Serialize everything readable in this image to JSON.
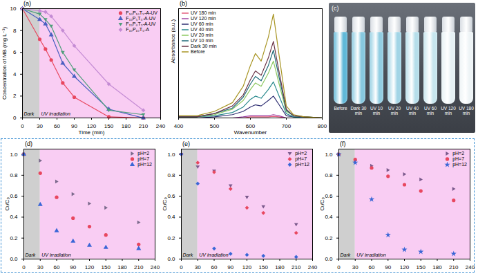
{
  "chart_data": [
    {
      "type": "line",
      "title": "(a)",
      "xlabel": "Time (min)",
      "ylabel": "Concentration of MB (mg L⁻¹)",
      "xlim": [
        0,
        240
      ],
      "xticks": [
        0,
        30,
        60,
        90,
        120,
        150,
        180,
        210,
        240
      ],
      "ylim": [
        0,
        10
      ],
      "yticks": [
        0,
        2,
        4,
        6,
        8,
        10
      ],
      "legend": "upper right",
      "annotations": [
        {
          "text": "Dark",
          "x": [
            0,
            30
          ],
          "color": "#cfcfcf"
        },
        {
          "text": "UV irradiation",
          "x": [
            30,
            240
          ],
          "color": "#f9cdf3"
        }
      ],
      "x": [
        0,
        30,
        40,
        50,
        70,
        90,
        150,
        210
      ],
      "series": [
        {
          "name": "F₁₀P₁₀T₅-A-UV",
          "color": "#e8475f",
          "marker": "circle",
          "values": [
            10,
            7.2,
            6.3,
            5.3,
            3.2,
            1.9,
            0.1,
            0.0
          ]
        },
        {
          "name": "F₁₅P₅T₅-A-UV",
          "color": "#4a5fc1",
          "marker": "triangle",
          "values": [
            10,
            9.0,
            8.6,
            7.6,
            5.0,
            3.8,
            0.8,
            0.0
          ]
        },
        {
          "name": "F₁₅P₀T₅-A-UV",
          "color": "#4e9e7a",
          "marker": "triangle-down",
          "values": [
            10,
            9.5,
            9.0,
            8.4,
            6.0,
            4.4,
            0.7,
            0.3
          ]
        },
        {
          "name": "F₁₀P₁₀T₅-A",
          "color": "#c48bd4",
          "marker": "diamond",
          "values": [
            10,
            9.8,
            9.7,
            9.3,
            8.0,
            6.6,
            3.1,
            0.7
          ]
        }
      ]
    },
    {
      "type": "line",
      "title": "(b)",
      "xlabel": "Wavenumber",
      "ylabel": "Absorbance (a.u.)",
      "xlim": [
        400,
        800
      ],
      "xticks": [
        400,
        500,
        600,
        700,
        800
      ],
      "ylim": [
        0,
        1
      ],
      "yticks": [],
      "tick_labels": "x",
      "legend": "upper left",
      "x": [
        400,
        450,
        500,
        550,
        580,
        600,
        614,
        630,
        650,
        664,
        680,
        700,
        720,
        750,
        800
      ],
      "series": [
        {
          "name": "UV 180 min",
          "color": "#e4607f",
          "values": [
            0,
            0,
            0,
            0,
            0,
            0.01,
            0.01,
            0.01,
            0.01,
            0.015,
            0.01,
            0,
            0,
            0,
            0
          ]
        },
        {
          "name": "UV 120 min",
          "color": "#a046a6",
          "values": [
            0,
            0,
            0,
            0,
            0.01,
            0.02,
            0.02,
            0.02,
            0.02,
            0.03,
            0.02,
            0,
            0,
            0,
            0
          ]
        },
        {
          "name": "UV 60 min",
          "color": "#2f2f72",
          "values": [
            0,
            0,
            0.01,
            0.03,
            0.06,
            0.1,
            0.12,
            0.11,
            0.16,
            0.2,
            0.12,
            0.02,
            0.01,
            0,
            0
          ]
        },
        {
          "name": "UV 40 min",
          "color": "#2a8a8e",
          "values": [
            0.01,
            0.01,
            0.02,
            0.05,
            0.1,
            0.17,
            0.2,
            0.18,
            0.26,
            0.33,
            0.2,
            0.04,
            0.01,
            0,
            0
          ]
        },
        {
          "name": "UV 20 min",
          "color": "#8cc860",
          "values": [
            0.01,
            0.01,
            0.03,
            0.08,
            0.16,
            0.26,
            0.32,
            0.29,
            0.41,
            0.52,
            0.31,
            0.06,
            0.02,
            0.01,
            0
          ]
        },
        {
          "name": "UV 10 min",
          "color": "#1f6a78",
          "values": [
            0.01,
            0.01,
            0.04,
            0.09,
            0.19,
            0.31,
            0.38,
            0.34,
            0.48,
            0.62,
            0.37,
            0.07,
            0.02,
            0.01,
            0
          ]
        },
        {
          "name": "Dark 30 min",
          "color": "#6a3346",
          "values": [
            0.01,
            0.01,
            0.04,
            0.11,
            0.21,
            0.35,
            0.43,
            0.39,
            0.55,
            0.7,
            0.42,
            0.08,
            0.02,
            0.01,
            0
          ]
        },
        {
          "name": "Before",
          "color": "#a89524",
          "values": [
            0.02,
            0.02,
            0.06,
            0.14,
            0.29,
            0.48,
            0.59,
            0.52,
            0.74,
            0.95,
            0.57,
            0.11,
            0.03,
            0.01,
            0
          ]
        }
      ]
    },
    {
      "type": "photo",
      "title": "(c)",
      "categories": [
        "Before",
        "Dark 30 min",
        "UV 10 min",
        "UV 20 min",
        "UV 40 min",
        "UV 60 min",
        "UV 120 min",
        "UV 180 min"
      ],
      "colors": [
        "#5fb8d8",
        "#86c8df",
        "#92cee2",
        "#a2d5e6",
        "#b6deea",
        "#c7e6ee",
        "#e6f1f4",
        "#eef4f6"
      ]
    },
    {
      "type": "scatter",
      "title": "(d)",
      "ylabel": "Cₜ/C₀",
      "xlim": [
        0,
        240
      ],
      "xticks": [
        0,
        30,
        60,
        90,
        120,
        150,
        180,
        210,
        240
      ],
      "ylim": [
        0,
        1.05
      ],
      "yticks": [
        {
          "value": 0,
          "label": "0.0"
        },
        {
          "value": 0.2,
          "label": "0.2"
        },
        {
          "value": 0.4,
          "label": "0.4"
        },
        {
          "value": 0.6,
          "label": "0.6"
        },
        {
          "value": 0.8,
          "label": "0.8"
        },
        {
          "value": 1,
          "label": "1.0"
        }
      ],
      "legend": "upper right",
      "annotations": [
        {
          "text": "Dark",
          "x": [
            0,
            30
          ],
          "color": "#cfcfcf"
        },
        {
          "text": "UV irradiation",
          "x": [
            30,
            240
          ],
          "color": "#f9cdf3"
        }
      ],
      "x": [
        0,
        30,
        60,
        90,
        120,
        150,
        210
      ],
      "series": [
        {
          "name": "pH=2",
          "color": "#7b6a8c",
          "marker": "triangle-right",
          "values": [
            1.0,
            0.94,
            0.74,
            0.62,
            0.53,
            0.49,
            0.35
          ]
        },
        {
          "name": "pH=7",
          "color": "#e8475f",
          "marker": "circle",
          "values": [
            1.0,
            0.82,
            0.59,
            0.39,
            0.31,
            0.23,
            0.14
          ]
        },
        {
          "name": "pH=12",
          "color": "#3a66d6",
          "marker": "triangle",
          "values": [
            1.0,
            0.52,
            0.27,
            0.17,
            0.13,
            0.11,
            0.1
          ]
        }
      ]
    },
    {
      "type": "scatter",
      "title": "(e)",
      "ylabel": "Cₜ/C₀",
      "xlim": [
        0,
        240
      ],
      "xticks": [
        0,
        30,
        60,
        90,
        120,
        150,
        180,
        210,
        240
      ],
      "ylim": [
        0,
        1.05
      ],
      "yticks": [
        {
          "value": 0,
          "label": "0.0"
        },
        {
          "value": 0.2,
          "label": "0.2"
        },
        {
          "value": 0.4,
          "label": "0.4"
        },
        {
          "value": 0.6,
          "label": "0.6"
        },
        {
          "value": 0.8,
          "label": "0.8"
        },
        {
          "value": 1,
          "label": "1.0"
        }
      ],
      "legend": "upper right",
      "annotations": [
        {
          "text": "Dark",
          "x": [
            0,
            30
          ],
          "color": "#cfcfcf"
        },
        {
          "text": "UV irradiation",
          "x": [
            30,
            240
          ],
          "color": "#f9cdf3"
        }
      ],
      "x": [
        0,
        30,
        60,
        90,
        120,
        150,
        210
      ],
      "series": [
        {
          "name": "pH=2",
          "color": "#7b5a8c",
          "marker": "triangle-down",
          "values": [
            1.0,
            0.88,
            0.84,
            0.7,
            0.59,
            0.5,
            0.33
          ]
        },
        {
          "name": "pH=7",
          "color": "#e8475f",
          "marker": "diamond",
          "values": [
            1.0,
            0.92,
            0.83,
            0.67,
            0.49,
            0.44,
            0.25
          ]
        },
        {
          "name": "pH=12",
          "color": "#3a66d6",
          "marker": "diamond",
          "values": [
            1.0,
            0.72,
            0.1,
            0.05,
            0.04,
            0.03,
            0.02
          ]
        }
      ]
    },
    {
      "type": "scatter",
      "title": "(f)",
      "ylabel": "Cₜ/C₀",
      "xlim": [
        0,
        240
      ],
      "xticks": [
        0,
        30,
        60,
        90,
        120,
        150,
        180,
        210,
        240
      ],
      "ylim": [
        0,
        1.05
      ],
      "yticks": [
        {
          "value": 0,
          "label": "0.0"
        },
        {
          "value": 0.2,
          "label": "0.2"
        },
        {
          "value": 0.4,
          "label": "0.4"
        },
        {
          "value": 0.6,
          "label": "0.6"
        },
        {
          "value": 0.8,
          "label": "0.8"
        },
        {
          "value": 1,
          "label": "1.0"
        }
      ],
      "legend": "upper right",
      "annotations": [
        {
          "text": "Dark",
          "x": [
            0,
            30
          ],
          "color": "#cfcfcf"
        },
        {
          "text": "UV irradiation",
          "x": [
            30,
            240
          ],
          "color": "#f9cdf3"
        }
      ],
      "x": [
        0,
        30,
        60,
        90,
        120,
        150,
        210
      ],
      "series": [
        {
          "name": "pH=2",
          "color": "#7b5a8c",
          "marker": "triangle-right",
          "values": [
            1.0,
            0.94,
            0.89,
            0.85,
            0.81,
            0.76,
            0.67
          ]
        },
        {
          "name": "pH=7",
          "color": "#e8475f",
          "marker": "circle",
          "values": [
            1.0,
            0.95,
            0.87,
            0.79,
            0.71,
            0.65,
            0.56
          ]
        },
        {
          "name": "pH=12",
          "color": "#3a66d6",
          "marker": "star",
          "values": [
            1.0,
            0.92,
            0.57,
            0.23,
            0.09,
            0.07,
            0.05
          ]
        }
      ]
    }
  ]
}
